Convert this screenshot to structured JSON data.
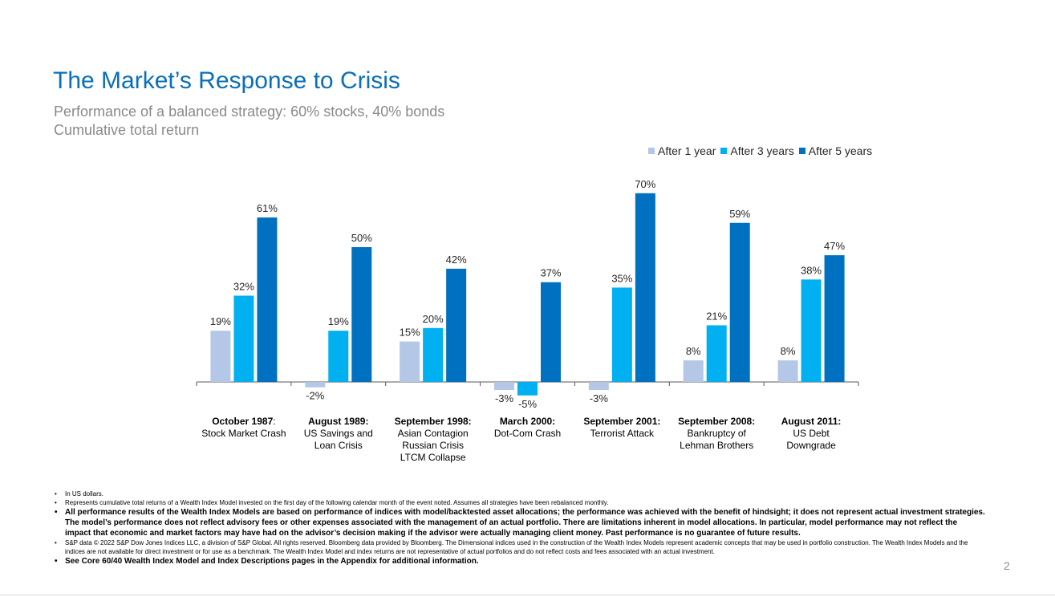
{
  "title": "The Market’s Response to Crisis",
  "subtitle_line1": "Performance of a balanced strategy: 60% stocks, 40% bonds",
  "subtitle_line2": "Cumulative total return",
  "page_number": "2",
  "colors": {
    "after_1_year": "#b4c7e7",
    "after_3_years": "#00b0f0",
    "after_5_years": "#0070c0",
    "title": "#0a6fb8"
  },
  "chart_data": {
    "type": "bar",
    "categories": [
      {
        "bold": "October 1987",
        "suffix": ":",
        "rest": [
          "Stock Market Crash"
        ]
      },
      {
        "bold": "August 1989:",
        "suffix": "",
        "rest": [
          "US Savings and",
          "Loan Crisis"
        ]
      },
      {
        "bold": "September 1998:",
        "suffix": "",
        "rest": [
          "Asian Contagion",
          "Russian Crisis",
          "LTCM Collapse"
        ]
      },
      {
        "bold": "March 2000:",
        "suffix": "",
        "rest": [
          "Dot-Com Crash"
        ]
      },
      {
        "bold": "September 2001:",
        "suffix": "",
        "rest": [
          "Terrorist Attack"
        ]
      },
      {
        "bold": "September 2008:",
        "suffix": "",
        "rest": [
          "Bankruptcy of",
          "Lehman Brothers"
        ]
      },
      {
        "bold": "August 2011:",
        "suffix": "",
        "rest": [
          "US Debt",
          "Downgrade"
        ]
      }
    ],
    "series": [
      {
        "name": "After 1 year",
        "values": [
          19,
          -2,
          15,
          -3,
          -3,
          8,
          8
        ]
      },
      {
        "name": "After 3 years",
        "values": [
          32,
          19,
          20,
          -5,
          35,
          21,
          38
        ]
      },
      {
        "name": "After 5 years",
        "values": [
          61,
          50,
          42,
          37,
          70,
          59,
          47
        ]
      }
    ],
    "data_labels": [
      [
        "19%",
        "-2%",
        "15%",
        "-3%",
        "-3%",
        "8%",
        "8%"
      ],
      [
        "32%",
        "19%",
        "20%",
        "-5%",
        "35%",
        "21%",
        "38%"
      ],
      [
        "61%",
        "50%",
        "42%",
        "37%",
        "70%",
        "59%",
        "47%"
      ]
    ],
    "legend_position": "top-right",
    "grid": false
  },
  "notes": [
    {
      "style": "small",
      "text": "In US dollars."
    },
    {
      "style": "small",
      "text": "Represents cumulative total returns of a Wealth Index Model invested on the first day of the following calendar month of the event noted. Assumes all strategies have been rebalanced monthly."
    },
    {
      "style": "bold",
      "text": "All performance results of the Wealth Index Models are based on performance of indices with model/backtested asset allocations; the performance was achieved with the benefit of hindsight; it does not represent actual investment strategies. The model’s performance does not reflect advisory fees or other expenses associated with the management of an actual portfolio. There are limitations inherent in model allocations. In particular, model performance may not reflect the impact that economic and market factors may have had on the advisor’s decision making if the advisor were actually managing client money. Past performance is no guarantee of future results."
    },
    {
      "style": "small",
      "text": "S&P data © 2022 S&P Dow Jones Indices LLC, a division of S&P Global. All rights reserved. Bloomberg data provided by Bloomberg. The Dimensional indices used in the construction of the Wealth Index Models represent academic concepts that may be used in portfolio construction. The Wealth Index Models and the indices are not available for direct investment or for use as a benchmark.  The Wealth Index Model and index returns are not representative of actual portfolios and do not reflect costs and fees associated with an actual investment."
    },
    {
      "style": "bold",
      "text": "See Core 60/40 Wealth Index Model and Index Descriptions pages in the Appendix for additional information."
    }
  ]
}
